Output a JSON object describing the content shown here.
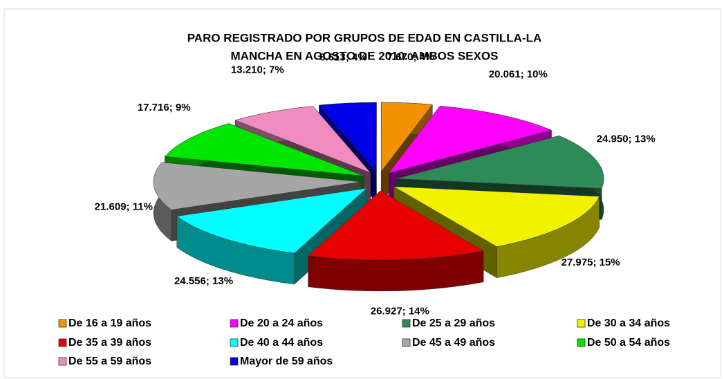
{
  "chart_data": {
    "type": "pie",
    "title": [
      "PARO REGISTRADO POR GRUPOS DE EDAD EN CASTILLA-LA",
      "MANCHA EN AGOSTO DE 2010. AMBOS SEXOS"
    ],
    "categories": [
      "De 16 a 19 años",
      "De 20 a 24 años",
      "De 25 a 29 años",
      "De 30 a 34 años",
      "De 35 a 39 años",
      "De 40 a 44 años",
      "De 45 a 49 años",
      "De 50 a 54 años",
      "De 55 a 59 años",
      "Mayor de 59 años"
    ],
    "values": [
      7670,
      20061,
      24950,
      27975,
      26927,
      24556,
      21609,
      17716,
      13210,
      8613
    ],
    "value_labels": [
      "7.670; 4%",
      "20.061; 10%",
      "24.950; 13%",
      "27.975; 15%",
      "26.927; 14%",
      "24.556; 13%",
      "21.609; 11%",
      "17.716; 9%",
      "13.210; 7%",
      "8.613; 4%"
    ],
    "colors": [
      "#f39200",
      "#ff00ff",
      "#2e8b57",
      "#f2f200",
      "#e60000",
      "#00ffff",
      "#a6a6a6",
      "#00e600",
      "#f08cc0",
      "#0000e6"
    ],
    "legend": "bottom"
  }
}
